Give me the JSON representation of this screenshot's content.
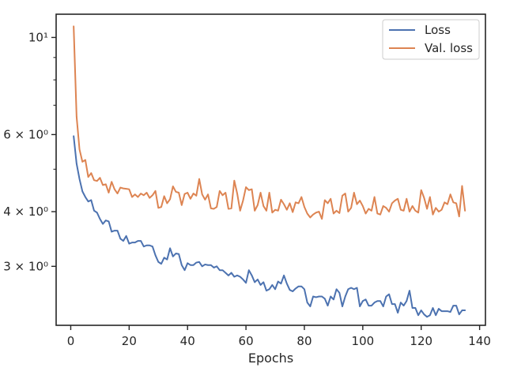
{
  "chart_data": {
    "type": "line",
    "title": "",
    "xlabel": "Epochs",
    "ylabel": "",
    "xscale": "linear",
    "yscale": "log",
    "xlim": [
      -5,
      142
    ],
    "ylim": [
      2.2,
      11.3
    ],
    "grid": false,
    "legend_position": "top-right",
    "x_ticks": [
      0,
      20,
      40,
      60,
      80,
      100,
      120,
      140
    ],
    "x_tick_labels": [
      "0",
      "20",
      "40",
      "60",
      "80",
      "100",
      "120",
      "140"
    ],
    "y_major_ticks": [
      3,
      4,
      6,
      10
    ],
    "y_tick_labels": [
      "3 × 10⁰",
      "4 × 10⁰",
      "6 × 10⁰",
      "10¹"
    ],
    "y_minor_ticks": [
      5,
      7,
      8,
      9
    ],
    "series": [
      {
        "name": "Loss",
        "color": "#4c72b0",
        "x": [
          1,
          2,
          3,
          4,
          5,
          6,
          7,
          8,
          9,
          10,
          11,
          12,
          13,
          14,
          15,
          16,
          17,
          18,
          19,
          20,
          21,
          22,
          23,
          24,
          25,
          26,
          27,
          28,
          29,
          30,
          31,
          32,
          33,
          34,
          35,
          36,
          37,
          38,
          39,
          40,
          41,
          42,
          43,
          44,
          45,
          46,
          47,
          48,
          49,
          50,
          51,
          52,
          53,
          54,
          55,
          56,
          57,
          58,
          59,
          60,
          61,
          62,
          63,
          64,
          65,
          66,
          67,
          68,
          69,
          70,
          71,
          72,
          73,
          74,
          75,
          76,
          77,
          78,
          79,
          80,
          81,
          82,
          83,
          84,
          85,
          86,
          87,
          88,
          89,
          90,
          91,
          92,
          93,
          94,
          95,
          96,
          97,
          98,
          99,
          100,
          101,
          102,
          103,
          104,
          105,
          106,
          107,
          108,
          109,
          110,
          111,
          112,
          113,
          114,
          115,
          116,
          117,
          118,
          119,
          120,
          121,
          122,
          123,
          124,
          125,
          126,
          127,
          128,
          129,
          130,
          131,
          132,
          133,
          134,
          135
        ],
        "values": [
          5.95,
          5.15,
          4.75,
          4.45,
          4.32,
          4.22,
          4.25,
          4.02,
          3.98,
          3.85,
          3.75,
          3.82,
          3.8,
          3.6,
          3.62,
          3.62,
          3.47,
          3.43,
          3.52,
          3.38,
          3.4,
          3.4,
          3.43,
          3.43,
          3.33,
          3.35,
          3.35,
          3.33,
          3.18,
          3.07,
          3.04,
          3.14,
          3.11,
          3.3,
          3.16,
          3.21,
          3.2,
          3.02,
          2.94,
          3.05,
          3.02,
          3.02,
          3.06,
          3.07,
          3.0,
          3.03,
          3.02,
          3.02,
          2.98,
          3.0,
          2.94,
          2.94,
          2.9,
          2.86,
          2.9,
          2.84,
          2.86,
          2.84,
          2.8,
          2.75,
          2.94,
          2.86,
          2.76,
          2.8,
          2.72,
          2.76,
          2.64,
          2.66,
          2.72,
          2.66,
          2.77,
          2.74,
          2.86,
          2.74,
          2.65,
          2.63,
          2.67,
          2.7,
          2.7,
          2.66,
          2.48,
          2.43,
          2.56,
          2.55,
          2.56,
          2.56,
          2.53,
          2.44,
          2.56,
          2.52,
          2.66,
          2.61,
          2.43,
          2.56,
          2.66,
          2.68,
          2.66,
          2.68,
          2.43,
          2.5,
          2.52,
          2.44,
          2.44,
          2.48,
          2.5,
          2.5,
          2.43,
          2.56,
          2.59,
          2.46,
          2.46,
          2.35,
          2.48,
          2.44,
          2.5,
          2.64,
          2.41,
          2.41,
          2.32,
          2.38,
          2.33,
          2.3,
          2.32,
          2.41,
          2.32,
          2.4,
          2.37,
          2.37,
          2.37,
          2.36,
          2.44,
          2.44,
          2.33,
          2.38,
          2.38
        ]
      },
      {
        "name": "Val. loss",
        "color": "#dd8452",
        "x": [
          1,
          2,
          3,
          4,
          5,
          6,
          7,
          8,
          9,
          10,
          11,
          12,
          13,
          14,
          15,
          16,
          17,
          18,
          19,
          20,
          21,
          22,
          23,
          24,
          25,
          26,
          27,
          28,
          29,
          30,
          31,
          32,
          33,
          34,
          35,
          36,
          37,
          38,
          39,
          40,
          41,
          42,
          43,
          44,
          45,
          46,
          47,
          48,
          49,
          50,
          51,
          52,
          53,
          54,
          55,
          56,
          57,
          58,
          59,
          60,
          61,
          62,
          63,
          64,
          65,
          66,
          67,
          68,
          69,
          70,
          71,
          72,
          73,
          74,
          75,
          76,
          77,
          78,
          79,
          80,
          81,
          82,
          83,
          84,
          85,
          86,
          87,
          88,
          89,
          90,
          91,
          92,
          93,
          94,
          95,
          96,
          97,
          98,
          99,
          100,
          101,
          102,
          103,
          104,
          105,
          106,
          107,
          108,
          109,
          110,
          111,
          112,
          113,
          114,
          115,
          116,
          117,
          118,
          119,
          120,
          121,
          122,
          123,
          124,
          125,
          126,
          127,
          128,
          129,
          130,
          131,
          132,
          133,
          134,
          135
        ],
        "values": [
          10.6,
          6.6,
          5.55,
          5.2,
          5.25,
          4.8,
          4.9,
          4.72,
          4.7,
          4.78,
          4.6,
          4.62,
          4.42,
          4.68,
          4.5,
          4.4,
          4.54,
          4.52,
          4.51,
          4.5,
          4.32,
          4.38,
          4.32,
          4.4,
          4.36,
          4.42,
          4.3,
          4.36,
          4.46,
          4.08,
          4.1,
          4.34,
          4.18,
          4.27,
          4.57,
          4.44,
          4.42,
          4.14,
          4.39,
          4.42,
          4.28,
          4.4,
          4.35,
          4.75,
          4.38,
          4.26,
          4.38,
          4.07,
          4.06,
          4.1,
          4.46,
          4.36,
          4.42,
          4.06,
          4.07,
          4.71,
          4.4,
          4.02,
          4.24,
          4.55,
          4.48,
          4.5,
          4.02,
          4.14,
          4.42,
          4.12,
          4.02,
          4.42,
          3.98,
          4.04,
          4.02,
          4.26,
          4.16,
          4.04,
          4.18,
          3.99,
          4.2,
          4.18,
          4.32,
          4.1,
          3.96,
          3.88,
          3.94,
          3.98,
          4.0,
          3.85,
          4.25,
          4.18,
          4.28,
          3.96,
          4.02,
          3.97,
          4.35,
          4.4,
          4.0,
          4.08,
          4.42,
          4.16,
          4.24,
          4.12,
          3.96,
          4.06,
          4.02,
          4.32,
          3.96,
          3.94,
          4.12,
          4.08,
          4.0,
          4.18,
          4.24,
          4.28,
          4.04,
          4.02,
          4.28,
          4.0,
          4.12,
          4.02,
          3.98,
          4.48,
          4.3,
          4.06,
          4.32,
          3.94,
          4.08,
          4.0,
          4.04,
          4.2,
          4.16,
          4.38,
          4.2,
          4.18,
          3.9,
          4.58,
          4.02
        ]
      }
    ]
  }
}
